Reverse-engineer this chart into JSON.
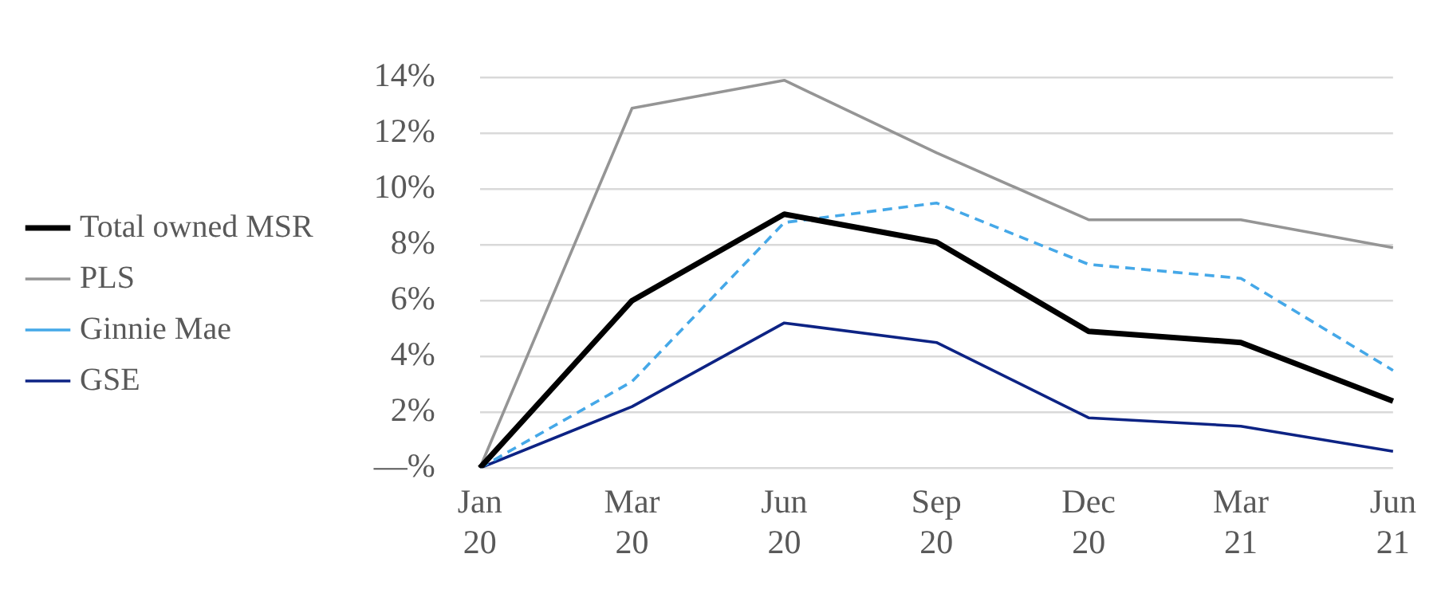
{
  "chart_data": {
    "type": "line",
    "categories": [
      "Jan 20",
      "Mar 20",
      "Jun 20",
      "Sep 20",
      "Dec 20",
      "Mar 21",
      "Jun 21"
    ],
    "series": [
      {
        "name": "Total owned MSR",
        "color": "#000000",
        "values": [
          0,
          6.0,
          9.1,
          8.1,
          4.9,
          4.5,
          2.4
        ]
      },
      {
        "name": "PLS",
        "color": "#959595",
        "values": [
          0,
          12.9,
          13.9,
          11.3,
          8.9,
          8.9,
          7.9
        ]
      },
      {
        "name": "Ginnie Mae",
        "color": "#45a8e8",
        "line_style": "dashed",
        "values": [
          0,
          3.1,
          8.8,
          9.5,
          7.3,
          6.8,
          3.5
        ]
      },
      {
        "name": "GSE",
        "color": "#0d2384",
        "values": [
          0,
          2.2,
          5.2,
          4.5,
          1.8,
          1.5,
          0.6
        ]
      }
    ],
    "ylim": [
      0,
      14
    ],
    "yticks": [
      {
        "value": 0,
        "label": "—%"
      },
      {
        "value": 2,
        "label": "2%"
      },
      {
        "value": 4,
        "label": "4%"
      },
      {
        "value": 6,
        "label": "6%"
      },
      {
        "value": 8,
        "label": "8%"
      },
      {
        "value": 10,
        "label": "10%"
      },
      {
        "value": 12,
        "label": "12%"
      },
      {
        "value": 14,
        "label": "14%"
      }
    ],
    "grid": "y",
    "legend": "left",
    "marker": "none",
    "line_style": "solid"
  }
}
